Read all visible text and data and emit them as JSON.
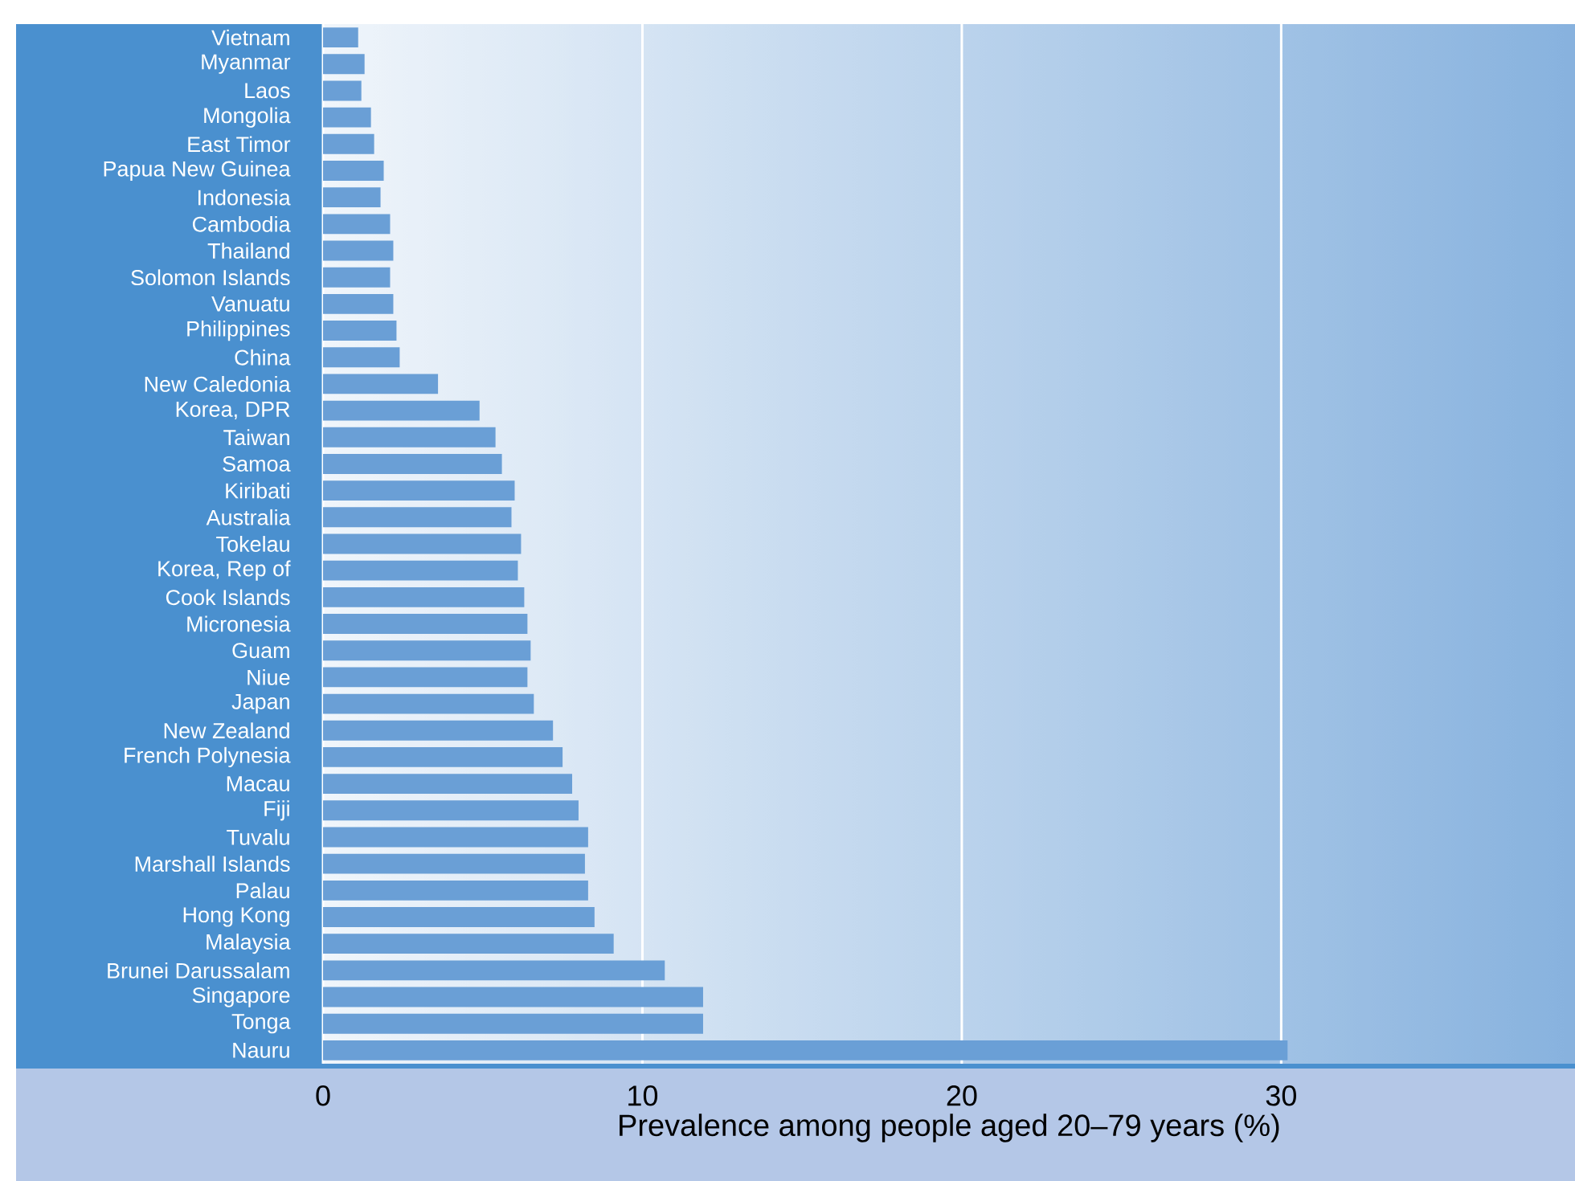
{
  "chart_data": {
    "type": "bar",
    "orientation": "horizontal",
    "xlabel": "Prevalence among people aged 20–79 years (%)",
    "categories": [
      "Vietnam",
      "Myanmar",
      "Laos",
      "Mongolia",
      "East Timor",
      "Papua New Guinea",
      "Indonesia",
      "Cambodia",
      "Thailand",
      "Solomon Islands",
      "Vanuatu",
      "Philippines",
      "China",
      "New Caledonia",
      "Korea, DPR",
      "Taiwan",
      "Samoa",
      "Kiribati",
      "Australia",
      "Tokelau",
      "Korea, Rep of",
      "Cook Islands",
      "Micronesia",
      "Guam",
      "Niue",
      "Japan",
      "New Zealand",
      "French Polynesia",
      "Macau",
      "Fiji",
      "Tuvalu",
      "Marshall Islands",
      "Palau",
      "Hong Kong",
      "Malaysia",
      "Brunei Darussalam",
      "Singapore",
      "Tonga",
      "Nauru"
    ],
    "values": [
      1.1,
      1.3,
      1.2,
      1.5,
      1.6,
      1.9,
      1.8,
      2.1,
      2.2,
      2.1,
      2.2,
      2.3,
      2.4,
      3.6,
      4.9,
      5.4,
      5.6,
      6.0,
      5.9,
      6.2,
      6.1,
      6.3,
      6.4,
      6.5,
      6.4,
      6.6,
      7.2,
      7.5,
      7.8,
      8.0,
      8.3,
      8.2,
      8.3,
      8.5,
      9.1,
      10.7,
      11.9,
      11.9,
      30.2
    ],
    "color": "#6a9fd6",
    "xlim": [
      0,
      39.2
    ],
    "xticks": [
      0,
      10,
      20,
      30
    ],
    "grid": "x"
  }
}
